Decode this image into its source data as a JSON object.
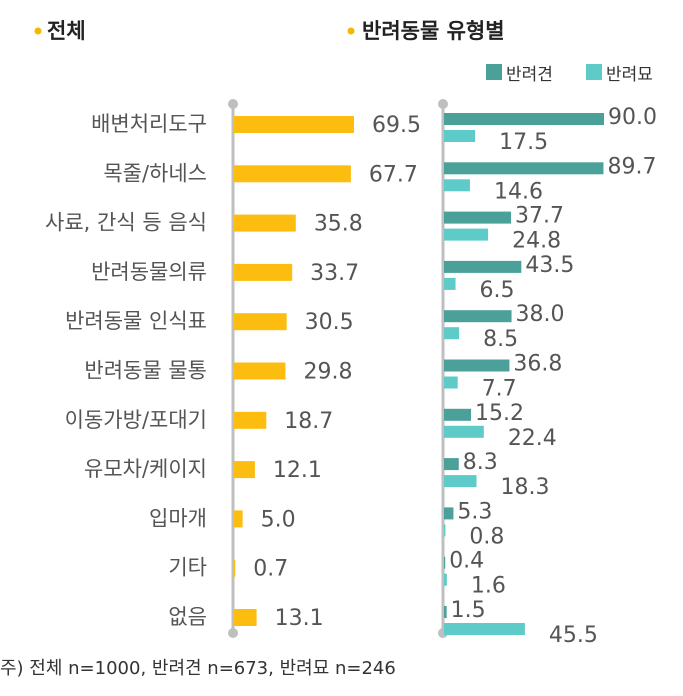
{
  "chart_data": [
    {
      "type": "bar",
      "orientation": "horizontal",
      "title": "전체",
      "categories": [
        "배변처리도구",
        "목줄/하네스",
        "사료, 간식 등 음식",
        "반려동물의류",
        "반려동물 인식표",
        "반려동물 물통",
        "이동가방/포대기",
        "유모차/케이지",
        "입마개",
        "기타",
        "없음"
      ],
      "series": [
        {
          "values": [
            69.5,
            67.7,
            35.8,
            33.7,
            30.5,
            29.8,
            18.7,
            12.1,
            5.0,
            0.7,
            13.1
          ],
          "color": "#FDBD10"
        }
      ],
      "value_labels": [
        "69.5",
        "67.7",
        "35.8",
        "33.7",
        "30.5",
        "29.8",
        "18.7",
        "12.1",
        "5.0",
        "0.7",
        "13.1"
      ],
      "xlim": [
        0,
        100
      ],
      "grid": false
    },
    {
      "type": "bar",
      "orientation": "horizontal",
      "title": "반려동물 유형별",
      "categories": [
        "배변처리도구",
        "목줄/하네스",
        "사료, 간식 등 음식",
        "반려동물의류",
        "반려동물 인식표",
        "반려동물 물통",
        "이동가방/포대기",
        "유모차/케이지",
        "입마개",
        "기타",
        "없음"
      ],
      "series": [
        {
          "name": "반려견",
          "values": [
            90.0,
            89.7,
            37.7,
            43.5,
            38.0,
            36.8,
            15.2,
            8.3,
            5.3,
            0.4,
            1.5
          ],
          "color": "#4BA09A",
          "labels": [
            "90.0",
            "89.7",
            "37.7",
            "43.5",
            "38.0",
            "36.8",
            "15.2",
            "8.3",
            "5.3",
            "0.4",
            "1.5"
          ]
        },
        {
          "name": "반려묘",
          "values": [
            17.5,
            14.6,
            24.8,
            6.5,
            8.5,
            7.7,
            22.4,
            18.3,
            0.8,
            1.6,
            45.5
          ],
          "color": "#5ECBC8",
          "labels": [
            "17.5",
            "14.6",
            "24.8",
            "6.5",
            "8.5",
            "7.7",
            "22.4",
            "18.3",
            "0.8",
            "1.6",
            "45.5"
          ]
        }
      ],
      "legend": "top-right",
      "xlim": [
        0,
        100
      ],
      "grid": false
    }
  ],
  "note": "주) 전체 n=1000, 반려견 n=673, 반려묘 n=246"
}
